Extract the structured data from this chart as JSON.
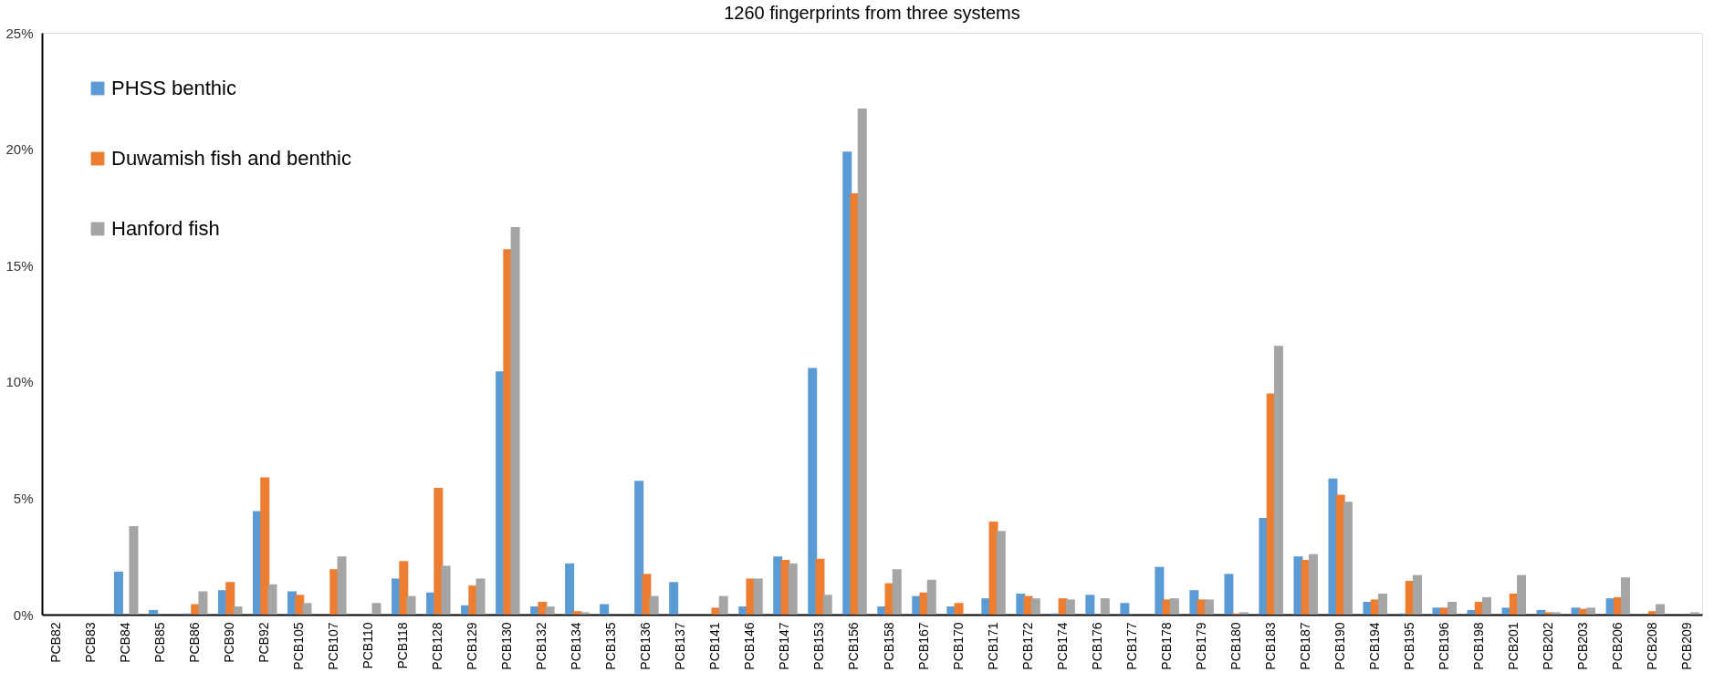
{
  "chart_data": {
    "type": "bar",
    "title": "1260 fingerprints from three systems",
    "categories": [
      "PCB82",
      "PCB83",
      "PCB84",
      "PCB85",
      "PCB86",
      "PCB90",
      "PCB92",
      "PCB105",
      "PCB107",
      "PCB110",
      "PCB118",
      "PCB128",
      "PCB129",
      "PCB130",
      "PCB132",
      "PCB134",
      "PCB135",
      "PCB136",
      "PCB137",
      "PCB141",
      "PCB146",
      "PCB147",
      "PCB153",
      "PCB156",
      "PCB158",
      "PCB167",
      "PCB170",
      "PCB171",
      "PCB172",
      "PCB174",
      "PCB176",
      "PCB177",
      "PCB178",
      "PCB179",
      "PCB180",
      "PCB183",
      "PCB187",
      "PCB190",
      "PCB194",
      "PCB195",
      "PCB196",
      "PCB198",
      "PCB201",
      "PCB202",
      "PCB203",
      "PCB206",
      "PCB208",
      "PCB209"
    ],
    "series": [
      {
        "name": "PHSS benthic",
        "color": "#5b9bd5",
        "values": [
          0,
          0,
          1.85,
          0.2,
          0.05,
          1.05,
          4.45,
          1.0,
          0,
          0,
          1.55,
          0.95,
          0.4,
          10.45,
          0.35,
          2.2,
          0.45,
          5.75,
          1.4,
          0,
          0.35,
          2.5,
          10.6,
          19.9,
          0.35,
          0.8,
          0.35,
          0.7,
          0.9,
          0.05,
          0.85,
          0.5,
          2.05,
          1.05,
          1.75,
          4.15,
          2.5,
          5.85,
          0.55,
          0.05,
          0.3,
          0.2,
          0.3,
          0.2,
          0.3,
          0.7,
          0,
          0
        ]
      },
      {
        "name": "Duwamish fish and benthic",
        "color": "#ed7d31",
        "values": [
          0,
          0,
          0,
          0,
          0.45,
          1.4,
          5.9,
          0.85,
          1.95,
          0,
          2.3,
          5.45,
          1.25,
          15.7,
          0.55,
          0.15,
          0,
          1.75,
          0,
          0.3,
          1.55,
          2.35,
          2.4,
          18.1,
          1.35,
          0.95,
          0.5,
          4.0,
          0.8,
          0.7,
          0,
          0,
          0.65,
          0.65,
          0.05,
          9.5,
          2.35,
          5.15,
          0.65,
          1.45,
          0.3,
          0.55,
          0.9,
          0.1,
          0.25,
          0.75,
          0.15,
          0
        ]
      },
      {
        "name": "Hanford fish",
        "color": "#a5a5a5",
        "values": [
          0,
          0,
          3.8,
          0,
          1.0,
          0.35,
          1.3,
          0.5,
          2.5,
          0.5,
          0.8,
          2.1,
          1.55,
          16.65,
          0.35,
          0.1,
          0,
          0.8,
          0,
          0.8,
          1.55,
          2.2,
          0.85,
          21.75,
          1.95,
          1.5,
          0,
          3.6,
          0.7,
          0.65,
          0.7,
          0,
          0.7,
          0.65,
          0.1,
          11.55,
          2.6,
          4.85,
          0.9,
          1.7,
          0.55,
          0.75,
          1.7,
          0.1,
          0.3,
          1.6,
          0.45,
          0.1
        ]
      }
    ],
    "ylim": [
      0,
      25
    ],
    "yticks": [
      {
        "value": 0,
        "label": "0%"
      },
      {
        "value": 5,
        "label": "5%"
      },
      {
        "value": 10,
        "label": "10%"
      },
      {
        "value": 15,
        "label": "15%"
      },
      {
        "value": 20,
        "label": "20%"
      },
      {
        "value": 25,
        "label": "25%"
      }
    ],
    "legend": "top left",
    "grid": false
  }
}
